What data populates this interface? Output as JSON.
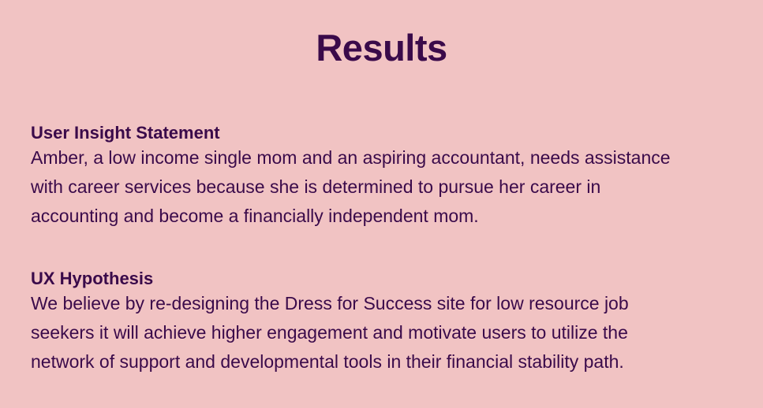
{
  "page": {
    "title": "Results"
  },
  "sections": [
    {
      "heading": "User Insight Statement",
      "lines": [
        "Amber, a low income single mom and an aspiring accountant, needs assistance",
        "with career services because she is determined to pursue her career in",
        "accounting and become a financially independent mom."
      ]
    },
    {
      "heading": "UX Hypothesis",
      "lines": [
        "We believe by re-designing the Dress for Success site for low resource job",
        "seekers it will achieve higher engagement and motivate users to utilize the",
        "network of support and developmental tools in their financial stability path."
      ]
    }
  ],
  "colors": {
    "background": "#f1c3c3",
    "text": "#3a0a4a"
  }
}
